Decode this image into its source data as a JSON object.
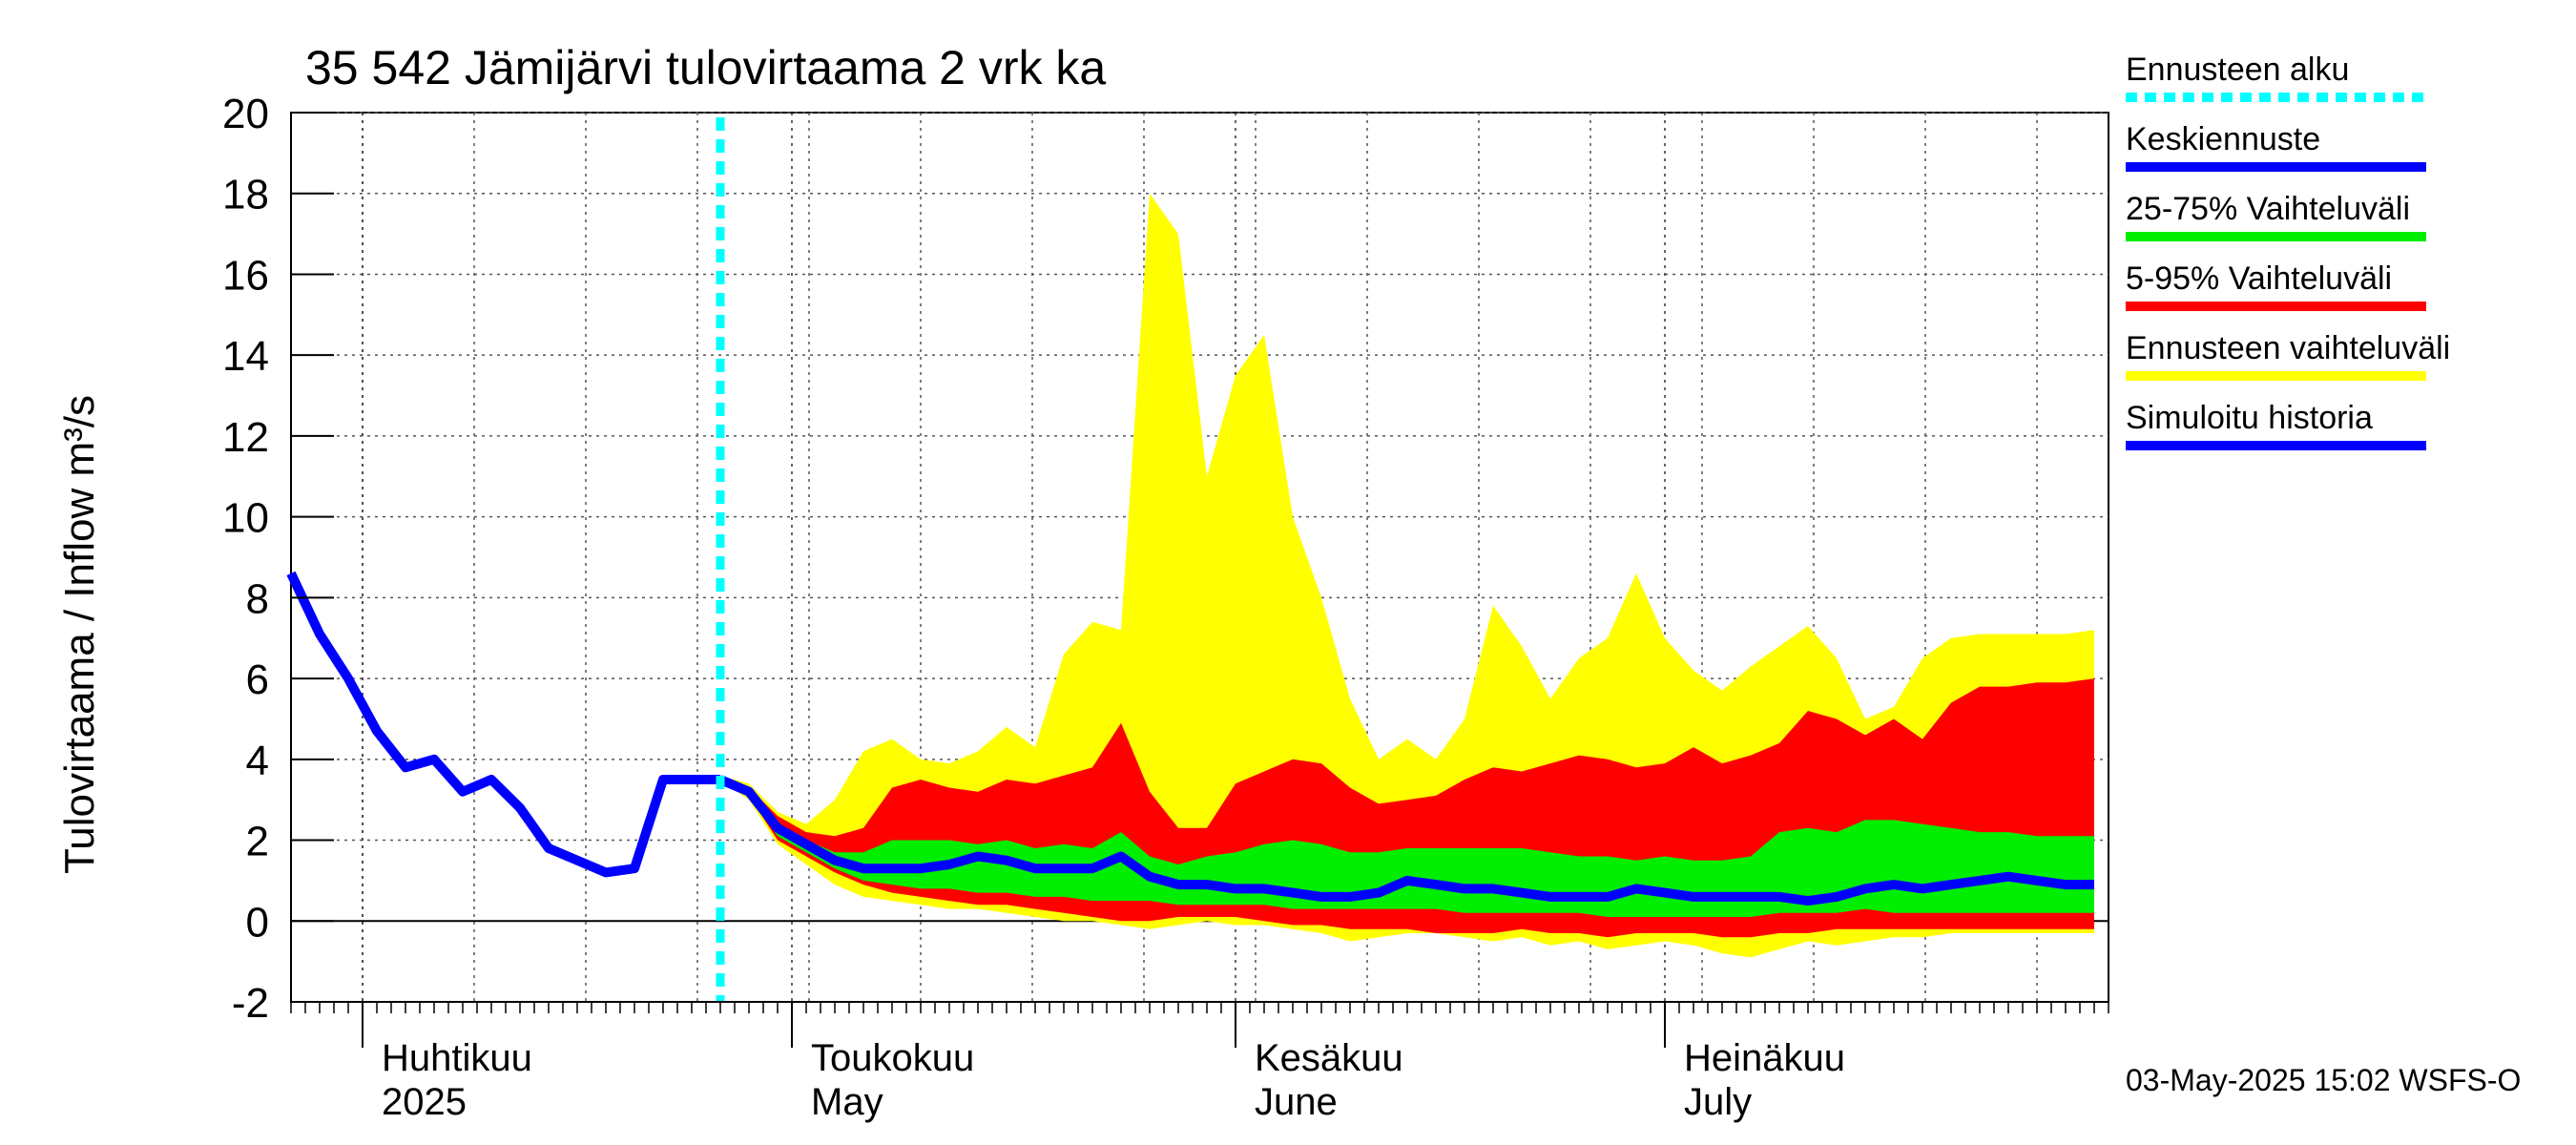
{
  "chart_data": {
    "type": "area",
    "title": "35 542 Jämijärvi tulovirtaama 2 vrk ka",
    "ylabel": "Tulovirtaama / Inflow    m³/s",
    "ylim": [
      -2,
      20
    ],
    "yticks": [
      -2,
      0,
      2,
      4,
      6,
      8,
      10,
      12,
      14,
      16,
      18,
      20
    ],
    "grid": true,
    "x_start": "2025-03-25",
    "x_end": "2025-07-30",
    "months": [
      {
        "fi": "Huhtikuu",
        "en": "2025",
        "day": 7
      },
      {
        "fi": "Toukokuu",
        "en": "May",
        "day": 37
      },
      {
        "fi": "Kesäkuu",
        "en": "June",
        "day": 68
      },
      {
        "fi": "Heinäkuu",
        "en": "July",
        "day": 98
      }
    ],
    "forecast_start_day": 30,
    "history": {
      "name": "Simuloitu historia",
      "days": [
        0,
        2,
        4,
        6,
        8,
        10,
        12,
        14,
        16,
        18,
        20,
        22,
        24,
        26,
        28,
        30
      ],
      "values": [
        8.6,
        7.1,
        6.0,
        4.7,
        3.8,
        4.0,
        3.2,
        3.5,
        2.8,
        1.8,
        1.5,
        1.2,
        1.3,
        3.5,
        3.5,
        3.5
      ]
    },
    "forecast_days": [
      30,
      32,
      34,
      36,
      38,
      40,
      42,
      44,
      46,
      48,
      50,
      52,
      54,
      56,
      58,
      60,
      62,
      64,
      66,
      68,
      70,
      72,
      74,
      76,
      78,
      80,
      82,
      84,
      86,
      88,
      90,
      92,
      94,
      96,
      98,
      100,
      102,
      104,
      106,
      108,
      110,
      112,
      114,
      116,
      118,
      120,
      122,
      124,
      126
    ],
    "series": [
      {
        "name": "Ennusteen vaihteluväli",
        "color": "#ffff00",
        "upper": [
          3.6,
          3.4,
          2.7,
          2.4,
          3.0,
          4.2,
          4.5,
          4.0,
          3.9,
          4.2,
          4.8,
          4.3,
          6.6,
          7.4,
          7.2,
          18.0,
          17.0,
          11.0,
          13.5,
          14.5,
          10.0,
          8.0,
          5.5,
          4.0,
          4.5,
          4.0,
          5.0,
          7.8,
          6.8,
          5.5,
          6.5,
          7.0,
          8.6,
          7.0,
          6.2,
          5.7,
          6.3,
          6.8,
          7.3,
          6.5,
          5.0,
          5.3,
          6.5,
          7.0,
          7.1,
          7.1,
          7.1,
          7.1,
          7.2
        ],
        "lower": [
          3.5,
          3.0,
          1.9,
          1.4,
          0.9,
          0.6,
          0.5,
          0.4,
          0.3,
          0.3,
          0.2,
          0.1,
          0.0,
          0.0,
          -0.1,
          -0.2,
          -0.1,
          0.0,
          -0.1,
          -0.1,
          -0.2,
          -0.3,
          -0.5,
          -0.4,
          -0.3,
          -0.3,
          -0.4,
          -0.5,
          -0.4,
          -0.6,
          -0.5,
          -0.7,
          -0.6,
          -0.5,
          -0.6,
          -0.8,
          -0.9,
          -0.7,
          -0.5,
          -0.6,
          -0.5,
          -0.4,
          -0.4,
          -0.3,
          -0.3,
          -0.3,
          -0.3,
          -0.3,
          -0.3
        ]
      },
      {
        "name": "5-95% Vaihteluväli",
        "color": "#ff0000",
        "upper": [
          3.6,
          3.3,
          2.6,
          2.2,
          2.1,
          2.3,
          3.3,
          3.5,
          3.3,
          3.2,
          3.5,
          3.4,
          3.6,
          3.8,
          4.9,
          3.2,
          2.3,
          2.3,
          3.4,
          3.7,
          4.0,
          3.9,
          3.3,
          2.9,
          3.0,
          3.1,
          3.5,
          3.8,
          3.7,
          3.9,
          4.1,
          4.0,
          3.8,
          3.9,
          4.3,
          3.9,
          4.1,
          4.4,
          5.2,
          5.0,
          4.6,
          5.0,
          4.5,
          5.4,
          5.8,
          5.8,
          5.9,
          5.9,
          6.0
        ],
        "lower": [
          3.5,
          3.1,
          2.0,
          1.6,
          1.2,
          0.9,
          0.7,
          0.6,
          0.5,
          0.4,
          0.4,
          0.3,
          0.2,
          0.1,
          0.0,
          0.0,
          0.1,
          0.1,
          0.1,
          0.0,
          -0.1,
          -0.1,
          -0.2,
          -0.2,
          -0.2,
          -0.3,
          -0.3,
          -0.3,
          -0.2,
          -0.3,
          -0.3,
          -0.4,
          -0.3,
          -0.3,
          -0.3,
          -0.4,
          -0.4,
          -0.3,
          -0.3,
          -0.2,
          -0.2,
          -0.2,
          -0.2,
          -0.2,
          -0.2,
          -0.2,
          -0.2,
          -0.2,
          -0.2
        ]
      },
      {
        "name": "25-75% Vaihteluväli",
        "color": "#00ee00",
        "upper": [
          3.5,
          3.2,
          2.3,
          2.0,
          1.7,
          1.7,
          2.0,
          2.0,
          2.0,
          1.9,
          2.0,
          1.8,
          1.9,
          1.8,
          2.2,
          1.6,
          1.4,
          1.6,
          1.7,
          1.9,
          2.0,
          1.9,
          1.7,
          1.7,
          1.8,
          1.8,
          1.8,
          1.8,
          1.8,
          1.7,
          1.6,
          1.6,
          1.5,
          1.6,
          1.5,
          1.5,
          1.6,
          2.2,
          2.3,
          2.2,
          2.5,
          2.5,
          2.4,
          2.3,
          2.2,
          2.2,
          2.1,
          2.1,
          2.1
        ],
        "lower": [
          3.5,
          3.1,
          2.1,
          1.7,
          1.3,
          1.0,
          0.9,
          0.8,
          0.8,
          0.7,
          0.7,
          0.6,
          0.6,
          0.5,
          0.5,
          0.5,
          0.4,
          0.4,
          0.4,
          0.4,
          0.3,
          0.3,
          0.3,
          0.3,
          0.3,
          0.3,
          0.2,
          0.2,
          0.2,
          0.2,
          0.2,
          0.1,
          0.1,
          0.1,
          0.1,
          0.1,
          0.1,
          0.2,
          0.2,
          0.2,
          0.3,
          0.2,
          0.2,
          0.2,
          0.2,
          0.2,
          0.2,
          0.2,
          0.2
        ]
      },
      {
        "name": "Keskiennuste",
        "color": "#0000ff",
        "values": [
          3.5,
          3.2,
          2.3,
          1.9,
          1.5,
          1.3,
          1.3,
          1.3,
          1.4,
          1.6,
          1.5,
          1.3,
          1.3,
          1.3,
          1.6,
          1.1,
          0.9,
          0.9,
          0.8,
          0.8,
          0.7,
          0.6,
          0.6,
          0.7,
          1.0,
          0.9,
          0.8,
          0.8,
          0.7,
          0.6,
          0.6,
          0.6,
          0.8,
          0.7,
          0.6,
          0.6,
          0.6,
          0.6,
          0.5,
          0.6,
          0.8,
          0.9,
          0.8,
          0.9,
          1.0,
          1.1,
          1.0,
          0.9,
          0.9
        ]
      }
    ],
    "legend": [
      {
        "label": "Ennusteen alku",
        "color": "#00ffff",
        "style": "dashed"
      },
      {
        "label": "Keskiennuste",
        "color": "#0000ff",
        "style": "solid"
      },
      {
        "label": "25-75% Vaihteluväli",
        "color": "#00ee00",
        "style": "solid"
      },
      {
        "label": "5-95% Vaihteluväli",
        "color": "#ff0000",
        "style": "solid"
      },
      {
        "label": "Ennusteen vaihteluväli",
        "color": "#ffff00",
        "style": "solid"
      },
      {
        "label": "Simuloitu historia",
        "color": "#0000ff",
        "style": "solid"
      }
    ],
    "footer": "03-May-2025 15:02 WSFS-O"
  }
}
